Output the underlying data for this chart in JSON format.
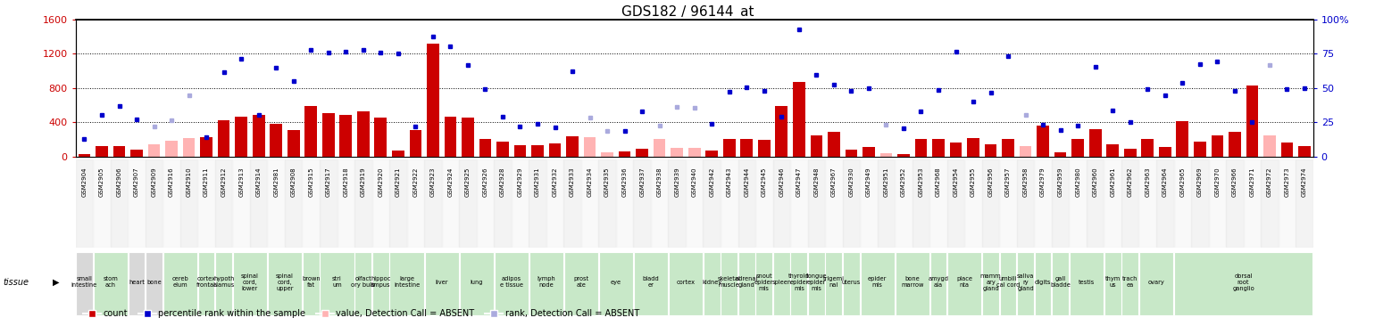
{
  "title": "GDS182 / 96144_at",
  "samples": [
    {
      "id": "GSM2904",
      "tissue": "small\nintestine",
      "value": 30,
      "rank": 210,
      "absent": false
    },
    {
      "id": "GSM2905",
      "tissue": "stom\nach",
      "value": 120,
      "rank": 490,
      "absent": false
    },
    {
      "id": "GSM2906",
      "tissue": "stom\nach",
      "value": 120,
      "rank": 590,
      "absent": false
    },
    {
      "id": "GSM2907",
      "tissue": "heart",
      "value": 80,
      "rank": 430,
      "absent": false
    },
    {
      "id": "GSM2909",
      "tissue": "bone",
      "value": 140,
      "rank": 350,
      "absent": true
    },
    {
      "id": "GSM2916",
      "tissue": "cereb\nelum",
      "value": 180,
      "rank": 420,
      "absent": true
    },
    {
      "id": "GSM2910",
      "tissue": "cereb\nelum",
      "value": 220,
      "rank": 710,
      "absent": true
    },
    {
      "id": "GSM2911",
      "tissue": "cortex\nfrontal",
      "value": 230,
      "rank": 230,
      "absent": false
    },
    {
      "id": "GSM2912",
      "tissue": "hypoth\nalamus",
      "value": 420,
      "rank": 990,
      "absent": false
    },
    {
      "id": "GSM2913",
      "tissue": "spinal\ncord,\nlower",
      "value": 460,
      "rank": 1140,
      "absent": false
    },
    {
      "id": "GSM2914",
      "tissue": "spinal\ncord,\nlower",
      "value": 490,
      "rank": 490,
      "absent": false
    },
    {
      "id": "GSM2981",
      "tissue": "spinal\ncord,\nupper",
      "value": 380,
      "rank": 1040,
      "absent": false
    },
    {
      "id": "GSM2908",
      "tissue": "spinal\ncord,\nupper",
      "value": 310,
      "rank": 880,
      "absent": false
    },
    {
      "id": "GSM2915",
      "tissue": "brown\nfat",
      "value": 590,
      "rank": 1250,
      "absent": false
    },
    {
      "id": "GSM2917",
      "tissue": "stri\num",
      "value": 510,
      "rank": 1210,
      "absent": false
    },
    {
      "id": "GSM2918",
      "tissue": "stri\num",
      "value": 490,
      "rank": 1220,
      "absent": false
    },
    {
      "id": "GSM2919",
      "tissue": "olfact\nory bulb",
      "value": 530,
      "rank": 1250,
      "absent": false
    },
    {
      "id": "GSM2920",
      "tissue": "hippoc\nampus",
      "value": 450,
      "rank": 1210,
      "absent": false
    },
    {
      "id": "GSM2921",
      "tissue": "large\nintestine",
      "value": 70,
      "rank": 1200,
      "absent": false
    },
    {
      "id": "GSM2922",
      "tissue": "large\nintestine",
      "value": 310,
      "rank": 350,
      "absent": false
    },
    {
      "id": "GSM2923",
      "tissue": "liver",
      "value": 1320,
      "rank": 1400,
      "absent": false
    },
    {
      "id": "GSM2924",
      "tissue": "liver",
      "value": 460,
      "rank": 1290,
      "absent": false
    },
    {
      "id": "GSM2925",
      "tissue": "lung",
      "value": 450,
      "rank": 1070,
      "absent": false
    },
    {
      "id": "GSM2926",
      "tissue": "lung",
      "value": 200,
      "rank": 790,
      "absent": false
    },
    {
      "id": "GSM2928",
      "tissue": "adipos\ne tissue",
      "value": 170,
      "rank": 470,
      "absent": false
    },
    {
      "id": "GSM2929",
      "tissue": "adipos\ne tissue",
      "value": 130,
      "rank": 350,
      "absent": false
    },
    {
      "id": "GSM2931",
      "tissue": "lymph\nnode",
      "value": 130,
      "rank": 380,
      "absent": false
    },
    {
      "id": "GSM2932",
      "tissue": "lymph\nnode",
      "value": 150,
      "rank": 340,
      "absent": false
    },
    {
      "id": "GSM2933",
      "tissue": "prost\nate",
      "value": 240,
      "rank": 1000,
      "absent": false
    },
    {
      "id": "GSM2934",
      "tissue": "prost\nate",
      "value": 230,
      "rank": 450,
      "absent": true
    },
    {
      "id": "GSM2935",
      "tissue": "eye",
      "value": 50,
      "rank": 300,
      "absent": true
    },
    {
      "id": "GSM2936",
      "tissue": "eye",
      "value": 60,
      "rank": 300,
      "absent": false
    },
    {
      "id": "GSM2937",
      "tissue": "bladd\ner",
      "value": 90,
      "rank": 530,
      "absent": false
    },
    {
      "id": "GSM2938",
      "tissue": "bladd\ner",
      "value": 200,
      "rank": 360,
      "absent": true
    },
    {
      "id": "GSM2939",
      "tissue": "cortex",
      "value": 100,
      "rank": 580,
      "absent": true
    },
    {
      "id": "GSM2940",
      "tissue": "cortex",
      "value": 100,
      "rank": 570,
      "absent": true
    },
    {
      "id": "GSM2942",
      "tissue": "kidney",
      "value": 70,
      "rank": 380,
      "absent": false
    },
    {
      "id": "GSM2943",
      "tissue": "skeletal\nmuscle",
      "value": 200,
      "rank": 760,
      "absent": false
    },
    {
      "id": "GSM2944",
      "tissue": "adrenal\ngland",
      "value": 200,
      "rank": 810,
      "absent": false
    },
    {
      "id": "GSM2945",
      "tissue": "snout\nepider\nmis",
      "value": 190,
      "rank": 770,
      "absent": false
    },
    {
      "id": "GSM2946",
      "tissue": "spleen",
      "value": 590,
      "rank": 460,
      "absent": false
    },
    {
      "id": "GSM2947",
      "tissue": "thyroid\nepider\nmis",
      "value": 870,
      "rank": 1490,
      "absent": false
    },
    {
      "id": "GSM2948",
      "tissue": "tongue\nepider\nmis",
      "value": 250,
      "rank": 950,
      "absent": false
    },
    {
      "id": "GSM2967",
      "tissue": "trigemi\nnal",
      "value": 290,
      "rank": 840,
      "absent": false
    },
    {
      "id": "GSM2930",
      "tissue": "uterus",
      "value": 80,
      "rank": 770,
      "absent": false
    },
    {
      "id": "GSM2949",
      "tissue": "epider\nmis",
      "value": 110,
      "rank": 800,
      "absent": false
    },
    {
      "id": "GSM2951",
      "tissue": "epider\nmis",
      "value": 40,
      "rank": 370,
      "absent": true
    },
    {
      "id": "GSM2952",
      "tissue": "bone\nmarrow",
      "value": 30,
      "rank": 330,
      "absent": false
    },
    {
      "id": "GSM2953",
      "tissue": "bone\nmarrow",
      "value": 200,
      "rank": 530,
      "absent": false
    },
    {
      "id": "GSM2968",
      "tissue": "amygd\nala",
      "value": 200,
      "rank": 780,
      "absent": false
    },
    {
      "id": "GSM2954",
      "tissue": "place\nnta",
      "value": 160,
      "rank": 1230,
      "absent": false
    },
    {
      "id": "GSM2955",
      "tissue": "place\nnta",
      "value": 220,
      "rank": 640,
      "absent": false
    },
    {
      "id": "GSM2956",
      "tissue": "mamm\nary\ngland",
      "value": 140,
      "rank": 750,
      "absent": false
    },
    {
      "id": "GSM2957",
      "tissue": "umbili\ncal cord",
      "value": 210,
      "rank": 1170,
      "absent": false
    },
    {
      "id": "GSM2958",
      "tissue": "saliva\nry\ngland",
      "value": 120,
      "rank": 490,
      "absent": true
    },
    {
      "id": "GSM2979",
      "tissue": "digits",
      "value": 360,
      "rank": 370,
      "absent": false
    },
    {
      "id": "GSM2959",
      "tissue": "gall\nbladde",
      "value": 50,
      "rank": 310,
      "absent": false
    },
    {
      "id": "GSM2980",
      "tissue": "testis",
      "value": 200,
      "rank": 360,
      "absent": false
    },
    {
      "id": "GSM2960",
      "tissue": "testis",
      "value": 320,
      "rank": 1050,
      "absent": false
    },
    {
      "id": "GSM2961",
      "tissue": "thym\nus",
      "value": 140,
      "rank": 540,
      "absent": false
    },
    {
      "id": "GSM2962",
      "tissue": "trach\nea",
      "value": 90,
      "rank": 400,
      "absent": false
    },
    {
      "id": "GSM2963",
      "tissue": "ovary",
      "value": 200,
      "rank": 790,
      "absent": false
    },
    {
      "id": "GSM2964",
      "tissue": "ovary",
      "value": 110,
      "rank": 710,
      "absent": false
    },
    {
      "id": "GSM2965",
      "tissue": "dorsal\nroot\nganglio",
      "value": 410,
      "rank": 860,
      "absent": false
    },
    {
      "id": "GSM2969",
      "tissue": "dorsal\nroot\nganglio",
      "value": 170,
      "rank": 1080,
      "absent": false
    },
    {
      "id": "GSM2970",
      "tissue": "dorsal\nroot\nganglio",
      "value": 250,
      "rank": 1110,
      "absent": false
    },
    {
      "id": "GSM2966",
      "tissue": "dorsal\nroot\nganglio",
      "value": 290,
      "rank": 770,
      "absent": false
    },
    {
      "id": "GSM2971",
      "tissue": "dorsal\nroot\nganglio",
      "value": 830,
      "rank": 400,
      "absent": false
    },
    {
      "id": "GSM2972",
      "tissue": "dorsal\nroot\nganglio",
      "value": 250,
      "rank": 1070,
      "absent": true
    },
    {
      "id": "GSM2973",
      "tissue": "dorsal\nroot\nganglio",
      "value": 160,
      "rank": 790,
      "absent": false
    },
    {
      "id": "GSM2974",
      "tissue": "dorsal\nroot\nganglio",
      "value": 120,
      "rank": 800,
      "absent": false
    }
  ],
  "ylim_left": [
    0,
    1600
  ],
  "ylim_right": [
    0,
    100
  ],
  "yticks_left": [
    0,
    400,
    800,
    1200,
    1600
  ],
  "yticks_right": [
    0,
    25,
    50,
    75,
    100
  ],
  "bar_color": "#cc0000",
  "bar_color_absent": "#ffb3b3",
  "dot_color": "#0000cc",
  "dot_color_absent": "#aaaadd",
  "tissue_bg_gray": "#d8d8d8",
  "tissue_bg_green": "#c8e8c8",
  "tick_color_left": "#cc0000",
  "tick_color_right": "#0000cc",
  "legend_items": [
    {
      "label": "count",
      "color": "#cc0000"
    },
    {
      "label": "percentile rank within the sample",
      "color": "#0000cc"
    },
    {
      "label": "value, Detection Call = ABSENT",
      "color": "#ffb3b3"
    },
    {
      "label": "rank, Detection Call = ABSENT",
      "color": "#aaaadd"
    }
  ],
  "gray_tissues": [
    "small\nintestine",
    "heart",
    "bone"
  ],
  "grid_lines": [
    400,
    800,
    1200
  ]
}
